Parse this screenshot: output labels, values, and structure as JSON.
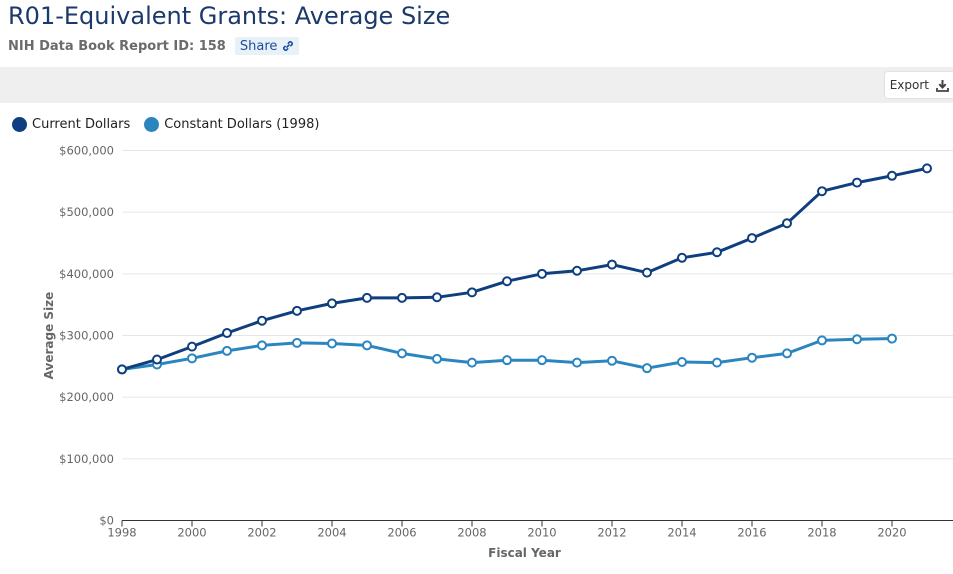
{
  "header": {
    "title": "R01-Equivalent Grants: Average Size",
    "report_id": "NIH Data Book Report ID: 158",
    "share_label": "Share",
    "share_icon": "link-icon"
  },
  "toolbar": {
    "export_label": "Export",
    "export_icon": "download-icon"
  },
  "chart_data": {
    "type": "line",
    "title": "",
    "xlabel": "Fiscal Year",
    "ylabel": "Average Size",
    "xlim": [
      1998,
      2021
    ],
    "ylim": [
      0,
      600000
    ],
    "x_ticks": [
      1998,
      2000,
      2002,
      2004,
      2006,
      2008,
      2010,
      2012,
      2014,
      2016,
      2018,
      2020
    ],
    "x_tick_labels": [
      "1998",
      "2000",
      "2002",
      "2004",
      "2006",
      "2008",
      "2010",
      "2012",
      "2014",
      "2016",
      "2018",
      "2020"
    ],
    "y_ticks": [
      0,
      100000,
      200000,
      300000,
      400000,
      500000,
      600000
    ],
    "y_tick_labels": [
      "$0",
      "$100,000",
      "$200,000",
      "$300,000",
      "$400,000",
      "$500,000",
      "$600,000"
    ],
    "grid": true,
    "legend_position": "top-left",
    "series": [
      {
        "name": "Current Dollars",
        "color": "#0f3f7f",
        "x": [
          1998,
          1999,
          2000,
          2001,
          2002,
          2003,
          2004,
          2005,
          2006,
          2007,
          2008,
          2009,
          2010,
          2011,
          2012,
          2013,
          2014,
          2015,
          2016,
          2017,
          2018,
          2019,
          2020,
          2021
        ],
        "values": [
          245000,
          261000,
          282000,
          304000,
          324000,
          340000,
          352000,
          361000,
          361000,
          362000,
          370000,
          388000,
          400000,
          405000,
          415000,
          402000,
          426000,
          435000,
          458000,
          482000,
          534000,
          548000,
          559000,
          571000
        ]
      },
      {
        "name": "Constant Dollars (1998)",
        "color": "#2b86c0",
        "x": [
          1998,
          1999,
          2000,
          2001,
          2002,
          2003,
          2004,
          2005,
          2006,
          2007,
          2008,
          2009,
          2010,
          2011,
          2012,
          2013,
          2014,
          2015,
          2016,
          2017,
          2018,
          2019,
          2020
        ],
        "values": [
          245000,
          253000,
          263000,
          275000,
          284000,
          288000,
          287000,
          284000,
          271000,
          262000,
          256000,
          260000,
          260000,
          256000,
          259000,
          247000,
          257000,
          256000,
          264000,
          271000,
          292000,
          294000,
          295000
        ]
      }
    ]
  }
}
